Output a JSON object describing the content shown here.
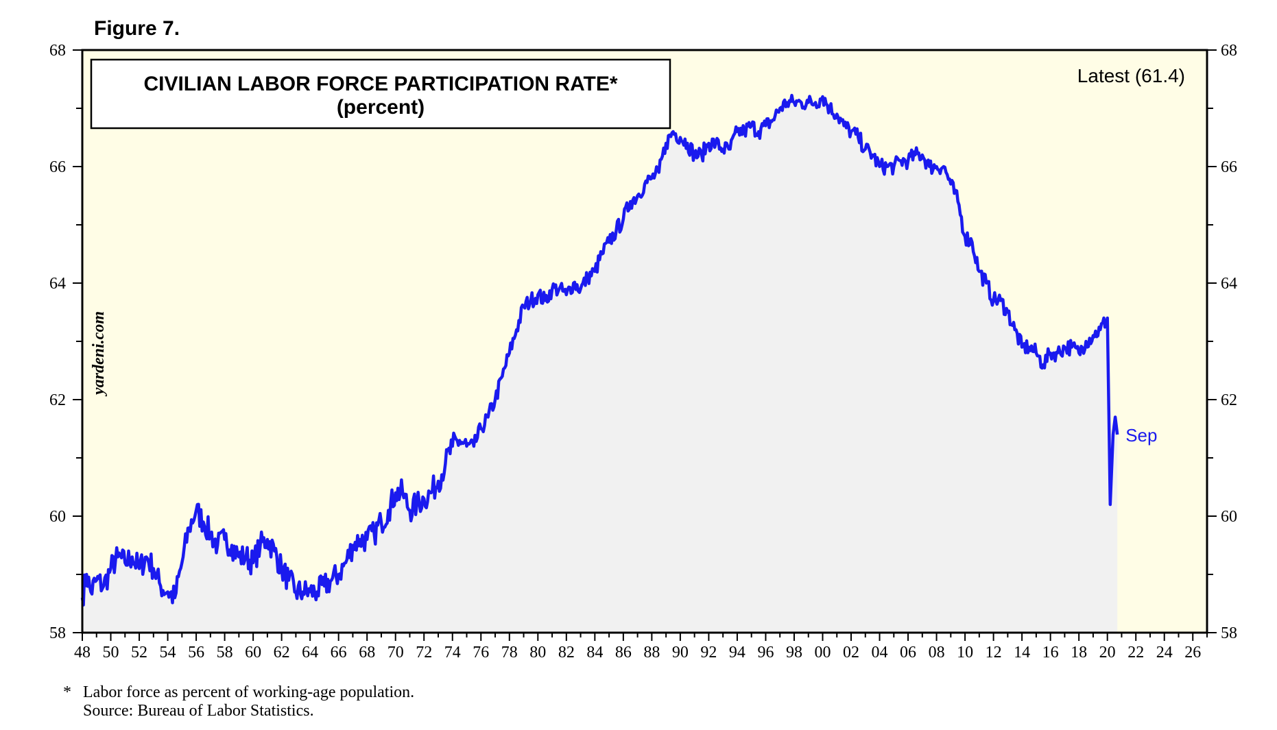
{
  "figure_label": "Figure 7.",
  "chart_data": {
    "type": "line",
    "title": "CIVILIAN LABOR FORCE PARTICIPATION RATE*",
    "subtitle": "(percent)",
    "xlabel": "",
    "ylabel": "",
    "x_range": [
      1948,
      2027
    ],
    "ylim": [
      58,
      68
    ],
    "y_ticks": [
      58,
      60,
      62,
      64,
      66,
      68
    ],
    "x_tick_labels": [
      "48",
      "50",
      "52",
      "54",
      "56",
      "58",
      "60",
      "62",
      "64",
      "66",
      "68",
      "70",
      "72",
      "74",
      "76",
      "78",
      "80",
      "82",
      "84",
      "86",
      "88",
      "90",
      "92",
      "94",
      "96",
      "98",
      "00",
      "02",
      "04",
      "06",
      "08",
      "10",
      "12",
      "14",
      "16",
      "18",
      "20",
      "22",
      "24",
      "26"
    ],
    "latest_label": "Latest (61.4)",
    "end_label": "Sep",
    "watermark": "yardeni.com",
    "line_color": "#1a1aee",
    "plot_background": "#fffde6",
    "area_fill": "#f1f1f1",
    "series": [
      {
        "name": "Civilian Labor Force Participation Rate",
        "points": [
          [
            1948.0,
            58.6
          ],
          [
            1948.3,
            59.0
          ],
          [
            1948.6,
            58.7
          ],
          [
            1949.0,
            58.9
          ],
          [
            1949.5,
            58.8
          ],
          [
            1950.0,
            59.1
          ],
          [
            1950.5,
            59.3
          ],
          [
            1951.0,
            59.2
          ],
          [
            1951.5,
            59.3
          ],
          [
            1952.0,
            59.1
          ],
          [
            1952.5,
            59.3
          ],
          [
            1953.0,
            59.1
          ],
          [
            1953.5,
            58.8
          ],
          [
            1954.0,
            58.7
          ],
          [
            1954.5,
            58.6
          ],
          [
            1955.0,
            59.2
          ],
          [
            1955.5,
            59.8
          ],
          [
            1956.0,
            60.1
          ],
          [
            1956.5,
            59.9
          ],
          [
            1957.0,
            59.7
          ],
          [
            1957.5,
            59.5
          ],
          [
            1958.0,
            59.6
          ],
          [
            1958.5,
            59.5
          ],
          [
            1959.0,
            59.3
          ],
          [
            1959.5,
            59.3
          ],
          [
            1960.0,
            59.2
          ],
          [
            1960.5,
            59.5
          ],
          [
            1961.0,
            59.6
          ],
          [
            1961.5,
            59.4
          ],
          [
            1962.0,
            59.1
          ],
          [
            1962.5,
            58.9
          ],
          [
            1963.0,
            58.7
          ],
          [
            1963.5,
            58.7
          ],
          [
            1964.0,
            58.7
          ],
          [
            1964.5,
            58.7
          ],
          [
            1965.0,
            58.8
          ],
          [
            1965.5,
            58.9
          ],
          [
            1966.0,
            59.0
          ],
          [
            1966.5,
            59.2
          ],
          [
            1967.0,
            59.5
          ],
          [
            1967.5,
            59.6
          ],
          [
            1968.0,
            59.6
          ],
          [
            1968.5,
            59.7
          ],
          [
            1969.0,
            59.9
          ],
          [
            1969.5,
            60.1
          ],
          [
            1970.0,
            60.4
          ],
          [
            1970.5,
            60.4
          ],
          [
            1971.0,
            60.1
          ],
          [
            1971.5,
            60.2
          ],
          [
            1972.0,
            60.3
          ],
          [
            1972.5,
            60.4
          ],
          [
            1973.0,
            60.6
          ],
          [
            1973.5,
            60.9
          ],
          [
            1974.0,
            61.2
          ],
          [
            1974.5,
            61.3
          ],
          [
            1975.0,
            61.2
          ],
          [
            1975.5,
            61.2
          ],
          [
            1976.0,
            61.5
          ],
          [
            1976.5,
            61.7
          ],
          [
            1977.0,
            62.0
          ],
          [
            1977.5,
            62.4
          ],
          [
            1978.0,
            62.8
          ],
          [
            1978.5,
            63.2
          ],
          [
            1979.0,
            63.6
          ],
          [
            1979.5,
            63.7
          ],
          [
            1980.0,
            63.8
          ],
          [
            1980.5,
            63.7
          ],
          [
            1981.0,
            63.9
          ],
          [
            1981.5,
            63.9
          ],
          [
            1982.0,
            63.8
          ],
          [
            1982.5,
            64.0
          ],
          [
            1983.0,
            63.9
          ],
          [
            1983.5,
            64.1
          ],
          [
            1984.0,
            64.2
          ],
          [
            1984.5,
            64.5
          ],
          [
            1985.0,
            64.7
          ],
          [
            1985.5,
            64.9
          ],
          [
            1986.0,
            65.1
          ],
          [
            1986.5,
            65.4
          ],
          [
            1987.0,
            65.5
          ],
          [
            1987.5,
            65.7
          ],
          [
            1988.0,
            65.8
          ],
          [
            1988.5,
            65.9
          ],
          [
            1989.0,
            66.4
          ],
          [
            1989.5,
            66.6
          ],
          [
            1990.0,
            66.5
          ],
          [
            1990.5,
            66.4
          ],
          [
            1991.0,
            66.2
          ],
          [
            1991.5,
            66.2
          ],
          [
            1992.0,
            66.4
          ],
          [
            1992.5,
            66.4
          ],
          [
            1993.0,
            66.3
          ],
          [
            1993.5,
            66.3
          ],
          [
            1994.0,
            66.6
          ],
          [
            1994.5,
            66.6
          ],
          [
            1995.0,
            66.7
          ],
          [
            1995.5,
            66.6
          ],
          [
            1996.0,
            66.7
          ],
          [
            1996.5,
            66.8
          ],
          [
            1997.0,
            67.0
          ],
          [
            1997.5,
            67.1
          ],
          [
            1998.0,
            67.1
          ],
          [
            1998.5,
            67.1
          ],
          [
            1999.0,
            67.1
          ],
          [
            1999.5,
            67.1
          ],
          [
            2000.0,
            67.2
          ],
          [
            2000.5,
            67.0
          ],
          [
            2001.0,
            66.9
          ],
          [
            2001.5,
            66.7
          ],
          [
            2002.0,
            66.6
          ],
          [
            2002.5,
            66.5
          ],
          [
            2003.0,
            66.3
          ],
          [
            2003.5,
            66.2
          ],
          [
            2004.0,
            66.0
          ],
          [
            2004.5,
            66.0
          ],
          [
            2005.0,
            66.0
          ],
          [
            2005.5,
            66.1
          ],
          [
            2006.0,
            66.1
          ],
          [
            2006.5,
            66.2
          ],
          [
            2007.0,
            66.2
          ],
          [
            2007.5,
            66.0
          ],
          [
            2008.0,
            66.0
          ],
          [
            2008.5,
            66.0
          ],
          [
            2009.0,
            65.7
          ],
          [
            2009.5,
            65.4
          ],
          [
            2010.0,
            64.8
          ],
          [
            2010.5,
            64.7
          ],
          [
            2011.0,
            64.2
          ],
          [
            2011.5,
            64.0
          ],
          [
            2012.0,
            63.7
          ],
          [
            2012.5,
            63.7
          ],
          [
            2013.0,
            63.5
          ],
          [
            2013.5,
            63.2
          ],
          [
            2014.0,
            62.9
          ],
          [
            2014.5,
            62.9
          ],
          [
            2015.0,
            62.8
          ],
          [
            2015.5,
            62.6
          ],
          [
            2016.0,
            62.8
          ],
          [
            2016.5,
            62.8
          ],
          [
            2017.0,
            62.9
          ],
          [
            2017.5,
            62.9
          ],
          [
            2018.0,
            62.8
          ],
          [
            2018.5,
            63.0
          ],
          [
            2019.0,
            63.1
          ],
          [
            2019.5,
            63.2
          ],
          [
            2020.0,
            63.4
          ],
          [
            2020.2,
            60.2
          ],
          [
            2020.4,
            61.4
          ],
          [
            2020.55,
            61.7
          ],
          [
            2020.7,
            61.4
          ]
        ]
      }
    ]
  },
  "footnote": {
    "marker": "*",
    "line1": "Labor force as percent of working-age population.",
    "line2": "Source: Bureau of Labor Statistics."
  }
}
